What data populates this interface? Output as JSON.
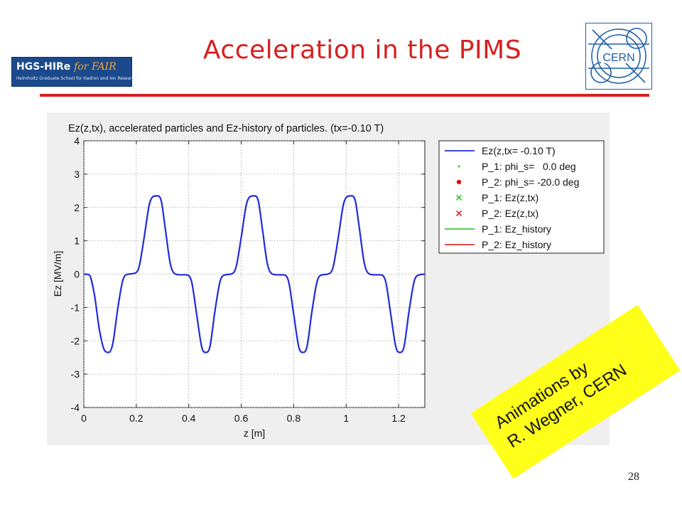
{
  "slide": {
    "title": "Acceleration in the PIMS",
    "page_number": "28",
    "note_lines": [
      "Animations by",
      "R. Wegner, CERN"
    ],
    "accent_color": "#d81f1f"
  },
  "logos": {
    "hgs": {
      "line1": "HGS-HIRe",
      "line1_suffix": "for FAIR",
      "line2": "Helmholtz Graduate School for Hadron and Ion Research"
    },
    "cern": {
      "text": "CERN",
      "color": "#1f5fa8"
    }
  },
  "chart_data": {
    "type": "line",
    "title": "Ez(z,tx), accelerated particles and Ez-history of particles.  (tx=-0.10 T)",
    "xlabel": "z [m]",
    "ylabel": "Ez [MV/m]",
    "xlim": [
      0,
      1.3
    ],
    "ylim": [
      -4,
      4
    ],
    "x_ticks": [
      0,
      0.2,
      0.4,
      0.6,
      0.8,
      1,
      1.2
    ],
    "x_tick_labels": [
      "0",
      "0.2",
      "0.4",
      "0.6",
      "0.8",
      "1",
      "1.2"
    ],
    "y_ticks": [
      4,
      3,
      2,
      1,
      0,
      -1,
      -2,
      -3,
      -4
    ],
    "y_tick_labels": [
      "4",
      "3",
      "2",
      "1",
      "0",
      "-1",
      "-2",
      "-3",
      "-4"
    ],
    "grid": true,
    "legend_position": "top-right",
    "series": [
      {
        "name": "Ez(z,tx= -0.10 T)",
        "color": "#1f2bd8",
        "x": [
          0,
          0.02,
          0.04,
          0.06,
          0.08,
          0.095,
          0.11,
          0.13,
          0.15,
          0.17,
          0.19,
          0.21,
          0.23,
          0.25,
          0.265,
          0.28,
          0.295,
          0.31,
          0.33,
          0.35,
          0.37,
          0.39,
          0.41,
          0.43,
          0.45,
          0.465,
          0.48,
          0.5,
          0.52,
          0.54,
          0.56,
          0.58,
          0.6,
          0.62,
          0.635,
          0.65,
          0.665,
          0.68,
          0.7,
          0.72,
          0.74,
          0.76,
          0.78,
          0.8,
          0.82,
          0.835,
          0.85,
          0.87,
          0.89,
          0.91,
          0.93,
          0.95,
          0.97,
          0.99,
          1.005,
          1.02,
          1.035,
          1.05,
          1.07,
          1.09,
          1.11,
          1.13,
          1.15,
          1.17,
          1.19,
          1.205,
          1.22,
          1.24,
          1.26,
          1.28,
          1.3
        ],
        "y": [
          0,
          -0.02,
          -0.6,
          -1.7,
          -2.3,
          -2.35,
          -2.1,
          -1.0,
          -0.15,
          0,
          0.02,
          0.2,
          1.1,
          2.1,
          2.33,
          2.35,
          2.2,
          1.4,
          0.3,
          0,
          -0.02,
          -0.02,
          -0.2,
          -1.2,
          -2.2,
          -2.35,
          -2.2,
          -1.1,
          -0.2,
          -0.02,
          0,
          0.2,
          1.1,
          2.1,
          2.33,
          2.35,
          2.2,
          1.4,
          0.3,
          0,
          -0.02,
          -0.02,
          -0.2,
          -1.2,
          -2.2,
          -2.35,
          -2.2,
          -1.1,
          -0.2,
          -0.02,
          0,
          0.2,
          1.1,
          2.1,
          2.33,
          2.35,
          2.2,
          1.4,
          0.3,
          0,
          -0.02,
          -0.02,
          -0.2,
          -1.2,
          -2.2,
          -2.35,
          -2.2,
          -1.1,
          -0.2,
          -0.02,
          0
        ]
      },
      {
        "name": "P_1: phi_s=   0.0 deg",
        "color": "#1fc21f",
        "marker": "dot"
      },
      {
        "name": "P_2: phi_s= -20.0 deg",
        "color": "#e01010",
        "marker": "dot-large"
      },
      {
        "name": "P_1: Ez(z,tx)",
        "color": "#1fc21f",
        "marker": "x"
      },
      {
        "name": "P_2: Ez(z,tx)",
        "color": "#e01010",
        "marker": "x"
      },
      {
        "name": "P_1: Ez_history",
        "color": "#1fc21f",
        "marker": "line"
      },
      {
        "name": "P_2: Ez_history",
        "color": "#e01010",
        "marker": "line"
      }
    ]
  }
}
